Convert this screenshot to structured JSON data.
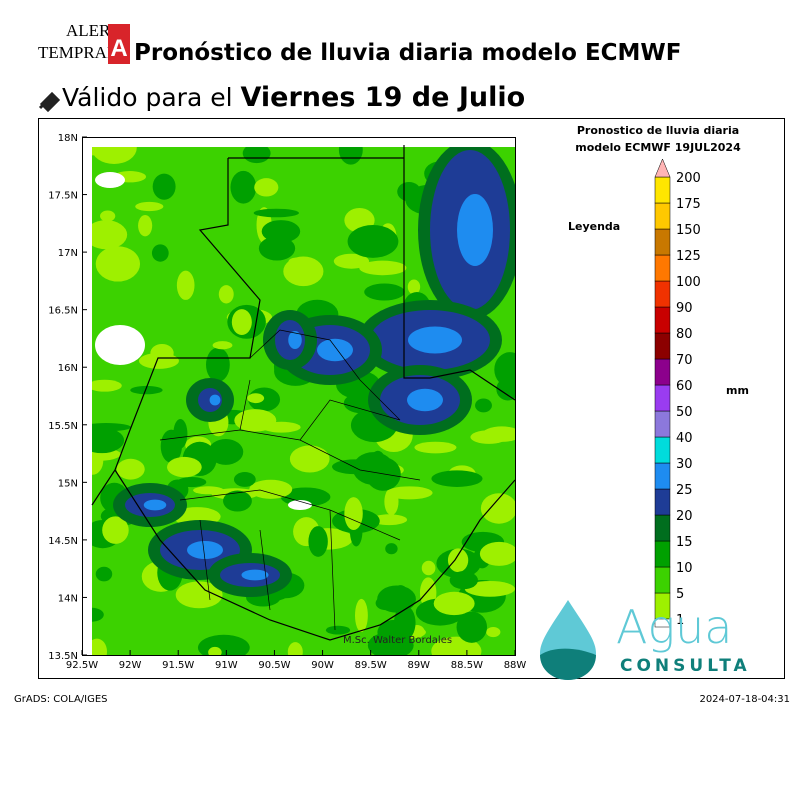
{
  "header": {
    "logo": {
      "line1": "ALERT",
      "line2": "TEMPRAN",
      "badge": "A"
    },
    "title": "Pronóstico de lluvia diaria modelo ECMWF",
    "subtitle_prefix": "Válido para el",
    "subtitle_date": "Viernes 19 de Julio"
  },
  "map": {
    "panel_title_line1": "Pronostico de lluvia diaria",
    "panel_title_line2": "modelo ECMWF   19JUL2024",
    "lat_labels": [
      "18N",
      "17.5N",
      "17N",
      "16.5N",
      "16N",
      "15.5N",
      "15N",
      "14.5N",
      "14N",
      "13.5N"
    ],
    "lon_labels": [
      "92.5W",
      "92W",
      "91.5W",
      "91W",
      "90.5W",
      "90W",
      "89.5W",
      "89W",
      "88.5W",
      "88W"
    ],
    "author": "M.Sc. Walter Bordales",
    "legend_title": "Leyenda",
    "unit": "mm",
    "levels": [
      {
        "label": "1",
        "color": "#9ef000"
      },
      {
        "label": "5",
        "color": "#3cd200"
      },
      {
        "label": "10",
        "color": "#00a000"
      },
      {
        "label": "15",
        "color": "#006e1e"
      },
      {
        "label": "20",
        "color": "#1e3c96"
      },
      {
        "label": "25",
        "color": "#1e8cf0"
      },
      {
        "label": "30",
        "color": "#00dcdc"
      },
      {
        "label": "40",
        "color": "#8c78dc"
      },
      {
        "label": "50",
        "color": "#9a3cf0"
      },
      {
        "label": "60",
        "color": "#8c008c"
      },
      {
        "label": "70",
        "color": "#8c0000"
      },
      {
        "label": "80",
        "color": "#c80000"
      },
      {
        "label": "90",
        "color": "#f03200"
      },
      {
        "label": "100",
        "color": "#ff7800"
      },
      {
        "label": "125",
        "color": "#c87800"
      },
      {
        "label": "150",
        "color": "#ffc800"
      },
      {
        "label": "175",
        "color": "#ffe600"
      },
      {
        "label": "200",
        "color": "#ffb4b4"
      }
    ]
  },
  "footer": {
    "left": "GrADS: COLA/IGES",
    "right": "2024-07-18-04:31"
  },
  "brand": {
    "name": "Agua",
    "sub": "CONSULTA"
  }
}
